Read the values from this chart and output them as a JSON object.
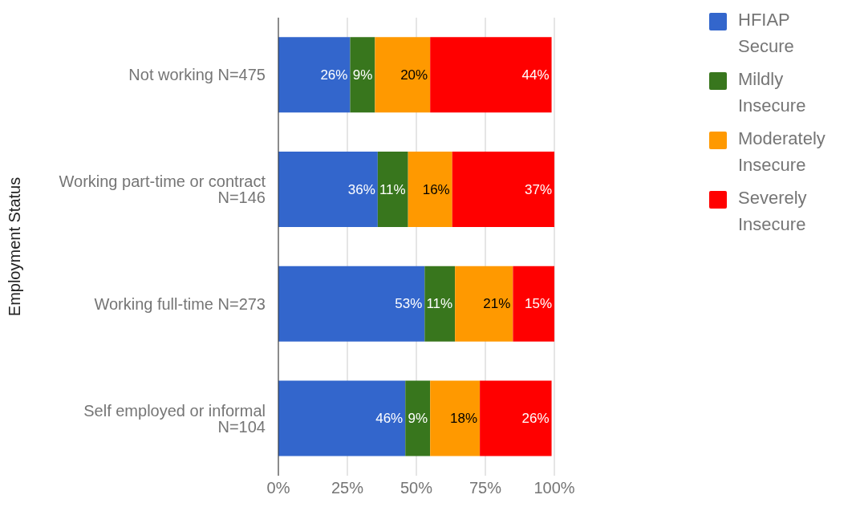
{
  "chart_data": {
    "type": "bar",
    "orientation": "horizontal",
    "stacked": true,
    "ylabel": "Employment Status",
    "categories": [
      "Not working N=475",
      "Working part-time or contract N=146",
      "Working full-time N=273",
      "Self employed or informal N=104"
    ],
    "series": [
      {
        "name": "HFIAP Secure",
        "color": "#3366cc",
        "values": [
          26,
          36,
          53,
          46
        ],
        "value_labels": [
          "26%",
          "36%",
          "53%",
          "46%"
        ]
      },
      {
        "name": "Mildly Insecure",
        "color": "#38761d",
        "values": [
          9,
          11,
          11,
          9
        ],
        "value_labels": [
          "9%",
          "11%",
          "11%",
          "9%"
        ]
      },
      {
        "name": "Moderately Insecure",
        "color": "#ff9900",
        "values": [
          20,
          16,
          21,
          18
        ],
        "value_labels": [
          "20%",
          "16%",
          "21%",
          "18%"
        ]
      },
      {
        "name": "Severely Insecure",
        "color": "#ff0000",
        "values": [
          44,
          37,
          15,
          26
        ],
        "value_labels": [
          "44%",
          "37%",
          "15%",
          "26%"
        ]
      }
    ],
    "xlim": [
      0,
      100
    ],
    "xticks": [
      {
        "value": 0,
        "label": "0%"
      },
      {
        "value": 25,
        "label": "25%"
      },
      {
        "value": 50,
        "label": "50%"
      },
      {
        "value": 75,
        "label": "75%"
      },
      {
        "value": 100,
        "label": "100%"
      }
    ],
    "grid": "x",
    "legend": "top right"
  }
}
